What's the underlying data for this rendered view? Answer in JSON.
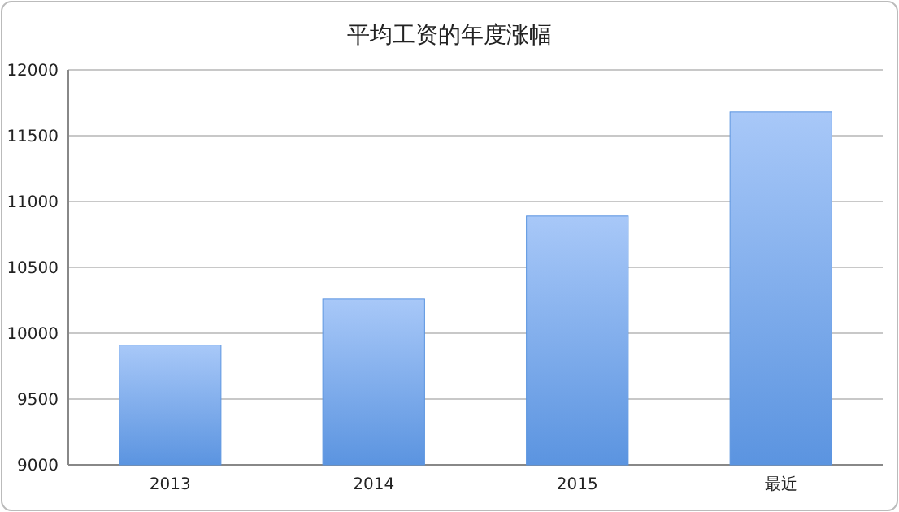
{
  "chart_data": {
    "type": "bar",
    "title": "平均工资的年度涨幅",
    "categories": [
      "2013",
      "2014",
      "2015",
      "最近"
    ],
    "values": [
      9910,
      10260,
      10890,
      11680
    ],
    "color": "#5b94e0",
    "ylim": [
      9000,
      12000
    ],
    "yticks": [
      9000,
      9500,
      10000,
      10500,
      11000,
      11500,
      12000
    ],
    "grid": "y"
  }
}
